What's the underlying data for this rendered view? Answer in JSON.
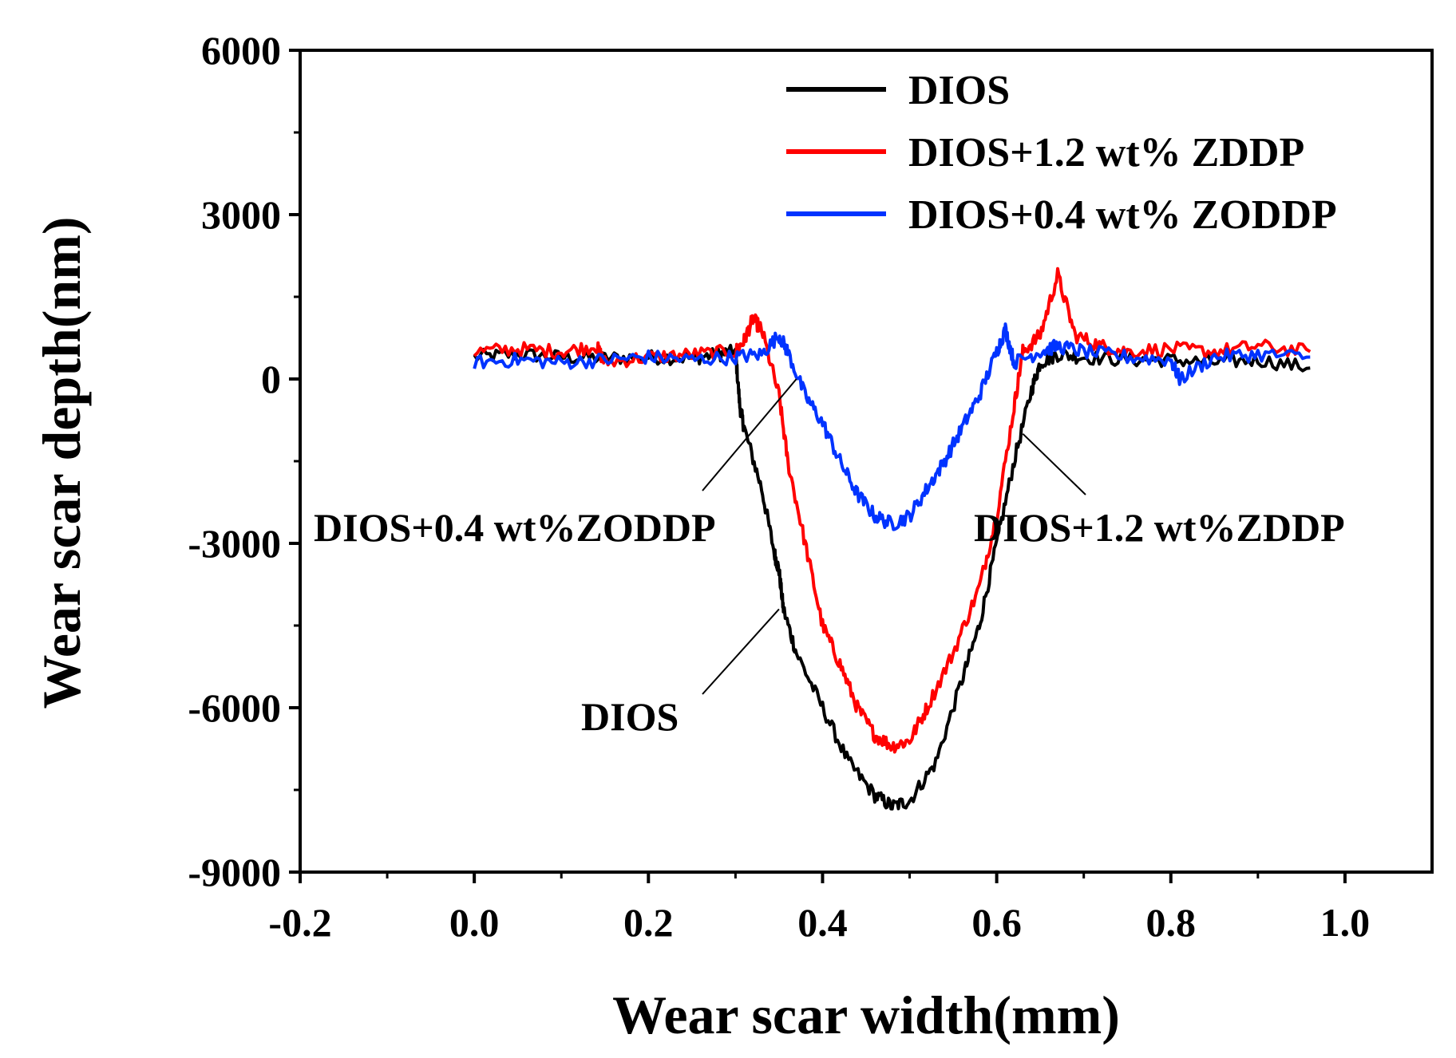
{
  "chart_data": {
    "type": "line",
    "title": "",
    "xlabel": "Wear scar width(mm)",
    "ylabel": "Wear scar depth(nm)",
    "xlim": [
      -0.2,
      1.1
    ],
    "ylim": [
      -9000,
      6000
    ],
    "xticks": [
      -0.2,
      0.0,
      0.2,
      0.4,
      0.6,
      0.8,
      1.0
    ],
    "xtick_labels": [
      "-0.2",
      "0.0",
      "0.2",
      "0.4",
      "0.6",
      "0.8",
      "1.0"
    ],
    "yticks": [
      -9000,
      -6000,
      -3000,
      0,
      3000,
      6000
    ],
    "ytick_labels": [
      "-9000",
      "-6000",
      "-3000",
      "0",
      "3000",
      "6000"
    ],
    "grid": false,
    "legend_position": "top-right",
    "series": [
      {
        "name": "DIOS",
        "color": "#000000",
        "x": [
          0.0,
          0.05,
          0.1,
          0.15,
          0.2,
          0.25,
          0.28,
          0.3,
          0.305,
          0.31,
          0.33,
          0.345,
          0.35,
          0.355,
          0.37,
          0.4,
          0.43,
          0.46,
          0.48,
          0.5,
          0.53,
          0.56,
          0.58,
          0.6,
          0.62,
          0.64,
          0.65,
          0.67,
          0.7,
          0.75,
          0.8,
          0.85,
          0.9,
          0.96
        ],
        "y": [
          400,
          450,
          400,
          380,
          400,
          380,
          450,
          500,
          -500,
          -900,
          -2000,
          -3200,
          -3500,
          -4200,
          -5000,
          -6000,
          -7000,
          -7600,
          -7800,
          -7700,
          -7000,
          -5500,
          -4500,
          -3000,
          -1500,
          -200,
          300,
          450,
          400,
          350,
          350,
          300,
          350,
          200
        ]
      },
      {
        "name": "DIOS+1.2 wt% ZDDP",
        "color": "#ff0000",
        "x": [
          0.0,
          0.05,
          0.1,
          0.14,
          0.15,
          0.2,
          0.25,
          0.3,
          0.31,
          0.32,
          0.33,
          0.35,
          0.36,
          0.38,
          0.4,
          0.42,
          0.44,
          0.46,
          0.48,
          0.5,
          0.52,
          0.55,
          0.58,
          0.6,
          0.62,
          0.63,
          0.65,
          0.67,
          0.69,
          0.72,
          0.75,
          0.8,
          0.85,
          0.9,
          0.96
        ],
        "y": [
          500,
          550,
          500,
          600,
          300,
          400,
          450,
          500,
          700,
          1100,
          900,
          -300,
          -1500,
          -3000,
          -4500,
          -5200,
          -6000,
          -6500,
          -6700,
          -6600,
          -6000,
          -5000,
          -3800,
          -2500,
          -500,
          500,
          800,
          1900,
          800,
          600,
          500,
          550,
          500,
          600,
          500
        ]
      },
      {
        "name": "DIOS+0.4 wt% ZODDP",
        "color": "#0033ff",
        "x": [
          0.0,
          0.05,
          0.1,
          0.15,
          0.2,
          0.25,
          0.3,
          0.33,
          0.35,
          0.36,
          0.38,
          0.4,
          0.42,
          0.44,
          0.46,
          0.48,
          0.5,
          0.52,
          0.54,
          0.56,
          0.58,
          0.6,
          0.61,
          0.62,
          0.65,
          0.67,
          0.7,
          0.75,
          0.8,
          0.81,
          0.85,
          0.9,
          0.96
        ],
        "y": [
          300,
          350,
          300,
          350,
          400,
          350,
          400,
          450,
          800,
          500,
          -300,
          -800,
          -1500,
          -2100,
          -2500,
          -2650,
          -2500,
          -2000,
          -1500,
          -900,
          -300,
          500,
          900,
          300,
          500,
          600,
          500,
          400,
          350,
          0,
          400,
          450,
          400
        ]
      }
    ],
    "annotations": [
      {
        "text": "DIOS+0.4 wt%ZODDP",
        "arrow_to": [
          0.37,
          0.0
        ]
      },
      {
        "text": "DIOS+1.2 wt%ZDDP",
        "arrow_to": [
          0.63,
          -1000
        ]
      },
      {
        "text": "DIOS",
        "arrow_to": [
          0.35,
          -4200
        ]
      }
    ]
  }
}
